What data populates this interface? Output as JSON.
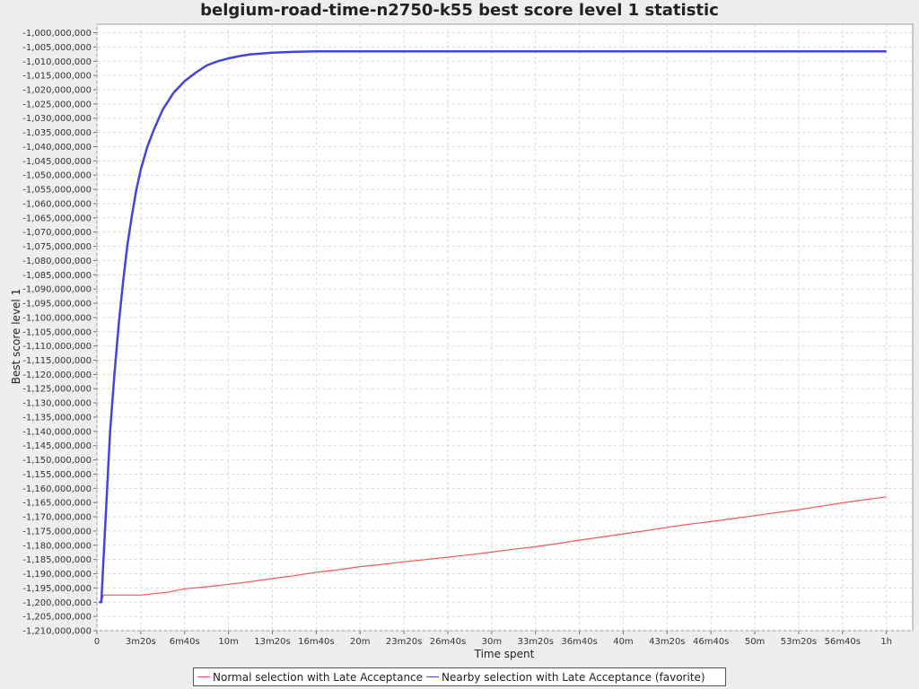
{
  "chart_data": {
    "type": "line",
    "title": "belgium-road-time-n2750-k55 best score level 1 statistic",
    "xlabel": "Time spent",
    "ylabel": "Best score level 1",
    "x_unit": "seconds",
    "xlim": [
      0,
      3720
    ],
    "ylim": [
      -1210000000,
      -997000000
    ],
    "x_ticks": [
      {
        "value": 0,
        "label": "0"
      },
      {
        "value": 200,
        "label": "3m20s"
      },
      {
        "value": 400,
        "label": "6m40s"
      },
      {
        "value": 600,
        "label": "10m"
      },
      {
        "value": 800,
        "label": "13m20s"
      },
      {
        "value": 1000,
        "label": "16m40s"
      },
      {
        "value": 1200,
        "label": "20m"
      },
      {
        "value": 1400,
        "label": "23m20s"
      },
      {
        "value": 1600,
        "label": "26m40s"
      },
      {
        "value": 1800,
        "label": "30m"
      },
      {
        "value": 2000,
        "label": "33m20s"
      },
      {
        "value": 2200,
        "label": "36m40s"
      },
      {
        "value": 2400,
        "label": "40m"
      },
      {
        "value": 2600,
        "label": "43m20s"
      },
      {
        "value": 2800,
        "label": "46m40s"
      },
      {
        "value": 3000,
        "label": "50m"
      },
      {
        "value": 3200,
        "label": "53m20s"
      },
      {
        "value": 3400,
        "label": "56m40s"
      },
      {
        "value": 3600,
        "label": "1h"
      }
    ],
    "y_ticks": [
      {
        "value": -1000000000,
        "label": "-1,000,000,000"
      },
      {
        "value": -1005000000,
        "label": "-1,005,000,000"
      },
      {
        "value": -1010000000,
        "label": "-1,010,000,000"
      },
      {
        "value": -1015000000,
        "label": "-1,015,000,000"
      },
      {
        "value": -1020000000,
        "label": "-1,020,000,000"
      },
      {
        "value": -1025000000,
        "label": "-1,025,000,000"
      },
      {
        "value": -1030000000,
        "label": "-1,030,000,000"
      },
      {
        "value": -1035000000,
        "label": "-1,035,000,000"
      },
      {
        "value": -1040000000,
        "label": "-1,040,000,000"
      },
      {
        "value": -1045000000,
        "label": "-1,045,000,000"
      },
      {
        "value": -1050000000,
        "label": "-1,050,000,000"
      },
      {
        "value": -1055000000,
        "label": "-1,055,000,000"
      },
      {
        "value": -1060000000,
        "label": "-1,060,000,000"
      },
      {
        "value": -1065000000,
        "label": "-1,065,000,000"
      },
      {
        "value": -1070000000,
        "label": "-1,070,000,000"
      },
      {
        "value": -1075000000,
        "label": "-1,075,000,000"
      },
      {
        "value": -1080000000,
        "label": "-1,080,000,000"
      },
      {
        "value": -1085000000,
        "label": "-1,085,000,000"
      },
      {
        "value": -1090000000,
        "label": "-1,090,000,000"
      },
      {
        "value": -1095000000,
        "label": "-1,095,000,000"
      },
      {
        "value": -1100000000,
        "label": "-1,100,000,000"
      },
      {
        "value": -1105000000,
        "label": "-1,105,000,000"
      },
      {
        "value": -1110000000,
        "label": "-1,110,000,000"
      },
      {
        "value": -1115000000,
        "label": "-1,115,000,000"
      },
      {
        "value": -1120000000,
        "label": "-1,120,000,000"
      },
      {
        "value": -1125000000,
        "label": "-1,125,000,000"
      },
      {
        "value": -1130000000,
        "label": "-1,130,000,000"
      },
      {
        "value": -1135000000,
        "label": "-1,135,000,000"
      },
      {
        "value": -1140000000,
        "label": "-1,140,000,000"
      },
      {
        "value": -1145000000,
        "label": "-1,145,000,000"
      },
      {
        "value": -1150000000,
        "label": "-1,150,000,000"
      },
      {
        "value": -1155000000,
        "label": "-1,155,000,000"
      },
      {
        "value": -1160000000,
        "label": "-1,160,000,000"
      },
      {
        "value": -1165000000,
        "label": "-1,165,000,000"
      },
      {
        "value": -1170000000,
        "label": "-1,170,000,000"
      },
      {
        "value": -1175000000,
        "label": "-1,175,000,000"
      },
      {
        "value": -1180000000,
        "label": "-1,180,000,000"
      },
      {
        "value": -1185000000,
        "label": "-1,185,000,000"
      },
      {
        "value": -1190000000,
        "label": "-1,190,000,000"
      },
      {
        "value": -1195000000,
        "label": "-1,195,000,000"
      },
      {
        "value": -1200000000,
        "label": "-1,200,000,000"
      },
      {
        "value": -1205000000,
        "label": "-1,205,000,000"
      },
      {
        "value": -1210000000,
        "label": "-1,210,000,000"
      }
    ],
    "grid": true,
    "legend_position": "bottom",
    "series": [
      {
        "name": "Normal selection with Late Acceptance",
        "color": "#ff5555",
        "x": [
          10,
          20,
          30,
          60,
          120,
          200,
          260,
          320,
          400,
          500,
          600,
          700,
          800,
          900,
          1000,
          1100,
          1200,
          1300,
          1400,
          1500,
          1600,
          1700,
          1800,
          1900,
          2000,
          2100,
          2200,
          2300,
          2400,
          2500,
          2600,
          2700,
          2800,
          2900,
          3000,
          3100,
          3200,
          3300,
          3400,
          3500,
          3600
        ],
        "y": [
          -1200000000,
          -1200000000,
          -1197500000,
          -1197500000,
          -1197500000,
          -1197500000,
          -1197000000,
          -1196500000,
          -1195300000,
          -1194600000,
          -1193700000,
          -1192800000,
          -1191700000,
          -1190700000,
          -1189500000,
          -1188600000,
          -1187500000,
          -1186700000,
          -1185800000,
          -1185000000,
          -1184200000,
          -1183300000,
          -1182400000,
          -1181400000,
          -1180500000,
          -1179400000,
          -1178200000,
          -1177100000,
          -1176000000,
          -1174900000,
          -1173700000,
          -1172600000,
          -1171700000,
          -1170600000,
          -1169600000,
          -1168500000,
          -1167500000,
          -1166300000,
          -1165100000,
          -1164000000,
          -1163000000
        ]
      },
      {
        "name": "Nearby selection with Late Acceptance (favorite)",
        "color": "#4444dd",
        "x": [
          10,
          20,
          30,
          40,
          50,
          60,
          80,
          100,
          120,
          140,
          160,
          180,
          200,
          230,
          260,
          300,
          350,
          400,
          450,
          500,
          550,
          600,
          650,
          700,
          800,
          900,
          1000,
          1100,
          1200,
          1400,
          1600,
          2000,
          2400,
          2800,
          3200,
          3600
        ],
        "y": [
          -1200000000,
          -1200000000,
          -1185000000,
          -1170000000,
          -1155000000,
          -1140000000,
          -1120000000,
          -1102000000,
          -1087000000,
          -1074000000,
          -1064000000,
          -1055000000,
          -1048000000,
          -1040000000,
          -1034000000,
          -1027000000,
          -1021000000,
          -1017000000,
          -1014000000,
          -1011500000,
          -1010000000,
          -1009000000,
          -1008200000,
          -1007600000,
          -1007000000,
          -1006700000,
          -1006500000,
          -1006500000,
          -1006500000,
          -1006500000,
          -1006500000,
          -1006500000,
          -1006500000,
          -1006500000,
          -1006500000,
          -1006500000
        ]
      }
    ]
  }
}
